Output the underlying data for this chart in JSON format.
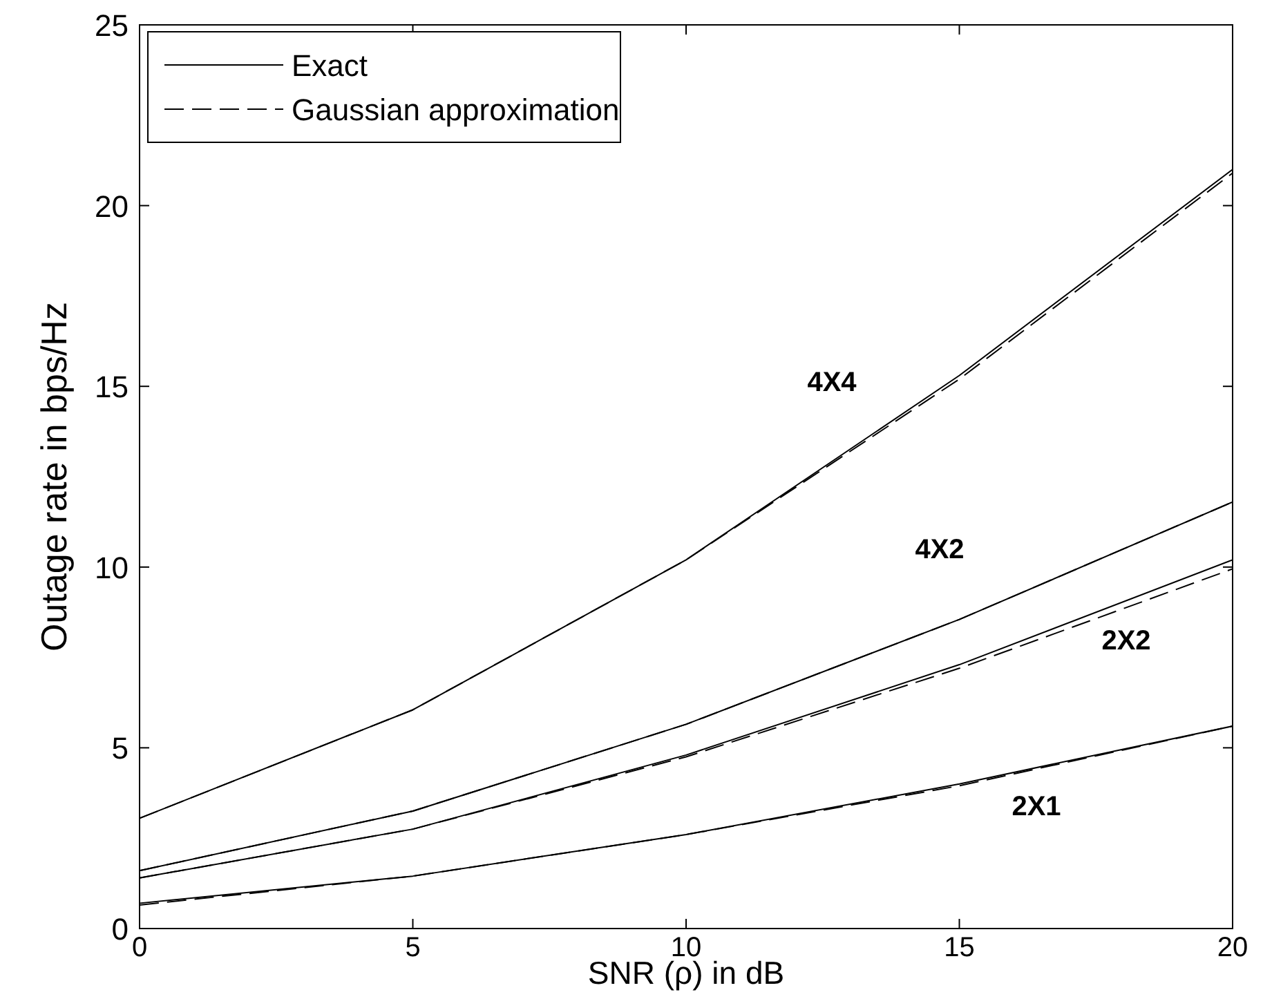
{
  "chart_data": {
    "type": "line",
    "xlabel": "SNR (ρ) in dB",
    "ylabel": "Outage rate in bps/Hz",
    "xlim": [
      0,
      20
    ],
    "ylim": [
      0,
      25
    ],
    "xticks": [
      0,
      5,
      10,
      15,
      20
    ],
    "yticks": [
      0,
      5,
      10,
      15,
      20,
      25
    ],
    "x": [
      0,
      5,
      10,
      15,
      20
    ],
    "grid": false,
    "legend": "top left",
    "series": [
      {
        "name": "Exact",
        "color": "#000000",
        "line_style": "solid",
        "values": [
          3.05,
          6.05,
          10.2,
          15.3,
          21.0
        ]
      },
      {
        "name": "Gaussian approximation",
        "color": "#000000",
        "line_style": "dashed",
        "values": [
          3.05,
          6.05,
          10.2,
          15.2,
          20.9
        ]
      },
      {
        "color": "#000000",
        "line_style": "solid",
        "values": [
          1.6,
          3.25,
          5.65,
          8.55,
          11.8
        ]
      },
      {
        "color": "#000000",
        "line_style": "dashed",
        "values": [
          1.6,
          3.25,
          5.65,
          8.55,
          11.8
        ]
      },
      {
        "color": "#000000",
        "line_style": "solid",
        "values": [
          1.4,
          2.75,
          4.8,
          7.3,
          10.2
        ]
      },
      {
        "color": "#000000",
        "line_style": "dashed",
        "values": [
          1.4,
          2.75,
          4.75,
          7.2,
          9.95
        ]
      },
      {
        "color": "#000000",
        "line_style": "solid",
        "values": [
          0.7,
          1.45,
          2.6,
          4.0,
          5.6
        ]
      },
      {
        "color": "#000000",
        "line_style": "dashed",
        "values": [
          0.65,
          1.45,
          2.6,
          3.95,
          5.6
        ]
      }
    ],
    "annotations": [
      "4X4",
      "4X2",
      "2X2",
      "2X1"
    ]
  }
}
